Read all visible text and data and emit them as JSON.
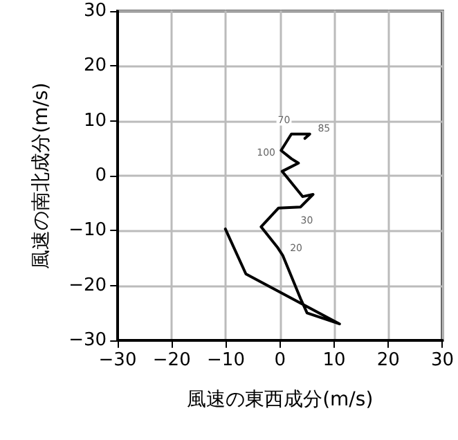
{
  "chart_data": {
    "type": "line",
    "xlabel": "風速の東西成分(m/s)",
    "ylabel": "風速の南北成分(m/s)",
    "x": [
      -10.1,
      -6.3,
      11,
      5,
      3.8,
      0.5,
      -0.5,
      -3.5,
      -0.3,
      3.8,
      6.1,
      4.2,
      0.4,
      3.4,
      2.1,
      0.2,
      2.1,
      4.2,
      5.5,
      4.6
    ],
    "series": [
      {
        "color": "#000000",
        "values": [
          -9.7,
          -17.9,
          -27,
          -25,
          -22.4,
          -14.5,
          -13,
          -9.3,
          -5.9,
          -5.7,
          -3.4,
          -3.8,
          0.8,
          2.3,
          3.1,
          4.6,
          7.6,
          7.6,
          7.6,
          6.8
        ]
      }
    ],
    "xlim": [
      -30,
      30
    ],
    "ylim": [
      -30,
      30
    ],
    "xticks": [
      -30,
      -20,
      -10,
      0,
      10,
      20,
      30
    ],
    "yticks": [
      -30,
      -20,
      -10,
      0,
      10,
      20,
      30
    ],
    "grid": true,
    "marker": "none",
    "line_style": "solid",
    "annotations": [
      {
        "text": "100",
        "x": 0.2,
        "y": 4.6
      },
      {
        "text": "70",
        "x": 2.1,
        "y": 7.6
      },
      {
        "text": "85",
        "x": 5.5,
        "y": 7.6
      },
      {
        "text": "30",
        "x": 3.8,
        "y": -5.7
      },
      {
        "text": "20",
        "x": 0.5,
        "y": -14.5
      }
    ]
  }
}
